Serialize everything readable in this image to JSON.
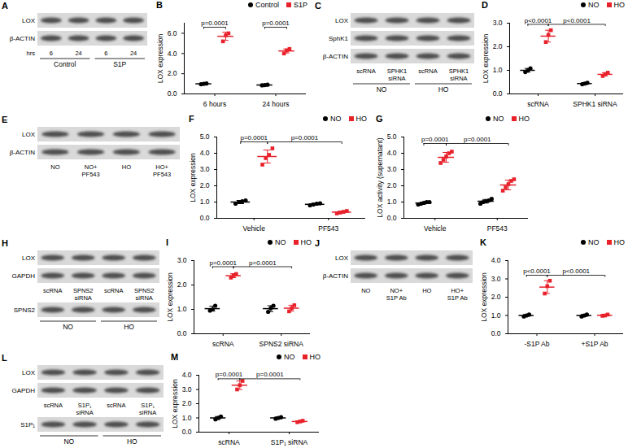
{
  "chart_data": [
    {
      "type": "scatter",
      "title": "B",
      "ylabel": "LOX expression",
      "categories": [
        "6 hours",
        "24 hours"
      ],
      "ylim": [
        0,
        7
      ],
      "yticks": [
        0,
        2,
        4,
        6
      ],
      "legend": "top",
      "series": [
        {
          "name": "Control",
          "color": "#000000",
          "marker": "circle",
          "values": [
            1.0,
            0.88
          ],
          "error": [
            0.04,
            0.04
          ],
          "points": [
            [
              0.96,
              1.0,
              1.03
            ],
            [
              0.85,
              0.88,
              0.91
            ]
          ]
        },
        {
          "name": "S1P",
          "color": "#e8212b",
          "marker": "square",
          "values": [
            5.7,
            4.25
          ],
          "error": [
            0.4,
            0.2
          ],
          "points": [
            [
              5.2,
              5.8,
              6.0
            ],
            [
              4.0,
              4.3,
              4.45
            ]
          ]
        }
      ],
      "comparisons": [
        {
          "label": "p=0.0001",
          "from": [
            0,
            0
          ],
          "to": [
            0,
            1
          ],
          "y": 6.6
        },
        {
          "label": "p=0.0001",
          "from": [
            1,
            0
          ],
          "to": [
            1,
            1
          ],
          "y": 6.6
        }
      ]
    },
    {
      "type": "scatter",
      "title": "D",
      "ylabel": "LOX expression",
      "categories": [
        "scRNA",
        "SPHK1 siRNA"
      ],
      "ylim": [
        0,
        3
      ],
      "yticks": [
        0,
        1,
        2,
        3
      ],
      "legend": "top",
      "series": [
        {
          "name": "NO",
          "color": "#000000",
          "marker": "circle",
          "values": [
            1.0,
            0.44
          ],
          "error": [
            0.08,
            0.03
          ],
          "points": [
            [
              0.93,
              1.0,
              1.08
            ],
            [
              0.41,
              0.44,
              0.47
            ]
          ]
        },
        {
          "name": "HO",
          "color": "#e8212b",
          "marker": "square",
          "values": [
            2.45,
            0.83
          ],
          "error": [
            0.25,
            0.07
          ],
          "points": [
            [
              2.2,
              2.5,
              2.7
            ],
            [
              0.76,
              0.84,
              0.9
            ]
          ]
        }
      ],
      "comparisons": [
        {
          "label": "p<0.0001",
          "from": [
            0,
            0
          ],
          "to": [
            0,
            1
          ],
          "y": 2.95
        },
        {
          "label": "p<0.0001",
          "from": [
            0,
            1
          ],
          "to": [
            1,
            1
          ],
          "y": 2.95
        }
      ]
    },
    {
      "type": "scatter",
      "title": "F",
      "ylabel": "LOX expression",
      "categories": [
        "Vehicle",
        "PF543"
      ],
      "ylim": [
        0,
        5
      ],
      "yticks": [
        0,
        1,
        2,
        3,
        4,
        5
      ],
      "legend": "top",
      "series": [
        {
          "name": "NO",
          "color": "#000000",
          "marker": "circle",
          "values": [
            1.0,
            0.86
          ],
          "error": [
            0.1,
            0.06
          ],
          "points": [
            [
              0.9,
              1.0,
              1.05,
              1.1
            ],
            [
              0.8,
              0.85,
              0.9,
              0.92
            ]
          ]
        },
        {
          "name": "HO",
          "color": "#e8212b",
          "marker": "square",
          "values": [
            3.8,
            0.38
          ],
          "error": [
            0.4,
            0.06
          ],
          "points": [
            [
              3.3,
              3.7,
              3.9,
              4.3
            ],
            [
              0.3,
              0.35,
              0.4,
              0.45
            ]
          ]
        }
      ],
      "comparisons": [
        {
          "label": "p=0.0001",
          "from": [
            0,
            0
          ],
          "to": [
            0,
            1
          ],
          "y": 4.7
        },
        {
          "label": "p=0.0001",
          "from": [
            0,
            1
          ],
          "to": [
            1,
            1
          ],
          "y": 4.7
        }
      ]
    },
    {
      "type": "scatter",
      "title": "G",
      "ylabel": "LOX activity (supernatant)",
      "categories": [
        "Vehicle",
        "PF543"
      ],
      "ylim": [
        0,
        5
      ],
      "yticks": [
        0,
        1,
        2,
        3,
        4,
        5
      ],
      "legend": "top",
      "series": [
        {
          "name": "NO",
          "color": "#000000",
          "marker": "circle",
          "values": [
            0.94,
            1.05
          ],
          "error": [
            0.06,
            0.11
          ],
          "points": [
            [
              0.85,
              0.9,
              0.95,
              1.0,
              1.0
            ],
            [
              0.9,
              1.0,
              1.05,
              1.1,
              1.2
            ]
          ]
        },
        {
          "name": "HO",
          "color": "#e8212b",
          "marker": "square",
          "values": [
            3.75,
            2.05
          ],
          "error": [
            0.3,
            0.3
          ],
          "points": [
            [
              3.4,
              3.6,
              3.8,
              4.0,
              4.1
            ],
            [
              1.7,
              1.9,
              2.1,
              2.3,
              2.4
            ]
          ]
        }
      ],
      "comparisons": [
        {
          "label": "p=0.0001",
          "from": [
            0,
            0
          ],
          "to": [
            0,
            1
          ],
          "y": 4.6
        },
        {
          "label": "p=0.0001",
          "from": [
            0,
            1
          ],
          "to": [
            1,
            1
          ],
          "y": 4.6
        }
      ]
    },
    {
      "type": "scatter",
      "title": "I",
      "ylabel": "LOX expression",
      "categories": [
        "scRNA",
        "SPNS2 siRNA"
      ],
      "ylim": [
        0,
        3
      ],
      "yticks": [
        0,
        1,
        2,
        3
      ],
      "legend": "top",
      "series": [
        {
          "name": "NO",
          "color": "#000000",
          "marker": "circle",
          "values": [
            1.03,
            1.03
          ],
          "error": [
            0.1,
            0.12
          ],
          "points": [
            [
              0.95,
              1.0,
              1.15
            ],
            [
              0.9,
              1.05,
              1.15
            ]
          ]
        },
        {
          "name": "HO",
          "color": "#e8212b",
          "marker": "square",
          "values": [
            2.38,
            1.05
          ],
          "error": [
            0.08,
            0.12
          ],
          "points": [
            [
              2.3,
              2.4,
              2.45
            ],
            [
              0.92,
              1.05,
              1.17
            ]
          ]
        }
      ],
      "comparisons": [
        {
          "label": "p=0.0001",
          "from": [
            0,
            0
          ],
          "to": [
            0,
            1
          ],
          "y": 2.75
        },
        {
          "label": "p=0.0001",
          "from": [
            0,
            1
          ],
          "to": [
            1,
            1
          ],
          "y": 2.75
        }
      ]
    },
    {
      "type": "scatter",
      "title": "K",
      "ylabel": "LOX expression",
      "categories": [
        "-S1P Ab",
        "+S1P Ab"
      ],
      "ylim": [
        0,
        4
      ],
      "yticks": [
        0,
        1,
        2,
        3,
        4
      ],
      "legend": "top",
      "series": [
        {
          "name": "NO",
          "color": "#000000",
          "marker": "circle",
          "values": [
            1.0,
            1.0
          ],
          "error": [
            0.05,
            0.05
          ],
          "points": [
            [
              0.95,
              1.0,
              1.05
            ],
            [
              0.95,
              1.0,
              1.05
            ]
          ]
        },
        {
          "name": "HO",
          "color": "#e8212b",
          "marker": "square",
          "values": [
            2.55,
            1.01
          ],
          "error": [
            0.35,
            0.04
          ],
          "points": [
            [
              2.2,
              2.6,
              2.9
            ],
            [
              0.98,
              1.0,
              1.05
            ]
          ]
        }
      ],
      "comparisons": [
        {
          "label": "p<0.0001",
          "from": [
            0,
            0
          ],
          "to": [
            0,
            1
          ],
          "y": 3.2
        },
        {
          "label": "p<0.0001",
          "from": [
            0,
            1
          ],
          "to": [
            1,
            1
          ],
          "y": 3.2
        }
      ]
    },
    {
      "type": "scatter",
      "title": "M",
      "ylabel": "LOX expression",
      "categories": [
        "scRNA",
        "S1P₁ siRNA"
      ],
      "ylim": [
        0,
        4
      ],
      "yticks": [
        0,
        1,
        2,
        3,
        4
      ],
      "legend": "top",
      "series": [
        {
          "name": "NO",
          "color": "#000000",
          "marker": "circle",
          "values": [
            1.0,
            1.0
          ],
          "error": [
            0.1,
            0.05
          ],
          "points": [
            [
              0.9,
              1.0,
              1.1
            ],
            [
              0.95,
              1.0,
              1.05
            ]
          ]
        },
        {
          "name": "HO",
          "color": "#e8212b",
          "marker": "square",
          "values": [
            3.3,
            0.75
          ],
          "error": [
            0.3,
            0.05
          ],
          "points": [
            [
              3.0,
              3.3,
              3.6
            ],
            [
              0.7,
              0.75,
              0.8
            ]
          ]
        }
      ],
      "comparisons": [
        {
          "label": "p=0.0001",
          "from": [
            0,
            0
          ],
          "to": [
            0,
            1
          ],
          "y": 3.75
        },
        {
          "label": "p=0.0001",
          "from": [
            0,
            1
          ],
          "to": [
            1,
            1
          ],
          "y": 3.75
        }
      ]
    }
  ],
  "blots": [
    {
      "title": "A",
      "rows": [
        "LOX",
        "β-ACTIN"
      ],
      "lane_axis_label": "hrs",
      "lanes": [
        [
          "6"
        ],
        [
          "24"
        ],
        [
          "6"
        ],
        [
          "24"
        ]
      ],
      "lower_rows": [],
      "groups": [
        {
          "label": "Control",
          "lanes": 2
        },
        {
          "label": "S1P",
          "lanes": 2
        }
      ]
    },
    {
      "title": "C",
      "rows": [
        "LOX",
        "SphK1",
        "β-ACTIN"
      ],
      "lanes": [
        [
          "scRNA"
        ],
        [
          "SPHK1",
          "siRNA"
        ],
        [
          "scRNA"
        ],
        [
          "SPHK1",
          "siRNA"
        ]
      ],
      "lower_rows": [],
      "groups": [
        {
          "label": "NO",
          "lanes": 2
        },
        {
          "label": "HO",
          "lanes": 2
        }
      ]
    },
    {
      "title": "E",
      "rows": [
        "LOX",
        "β-ACTIN"
      ],
      "lanes": [
        [
          "NO"
        ],
        [
          "NO+",
          "PF543"
        ],
        [
          "HO"
        ],
        [
          "HO+",
          "PF543"
        ]
      ],
      "lower_rows": [],
      "groups": []
    },
    {
      "title": "H",
      "rows": [
        "LOX",
        "GAPDH"
      ],
      "lanes": [
        [
          "scRNA"
        ],
        [
          "SPNS2",
          "siRNA"
        ],
        [
          "scRNA"
        ],
        [
          "SPNS2",
          "siRNA"
        ]
      ],
      "lower_rows": [
        "SPNS2"
      ],
      "groups": [
        {
          "label": "NO",
          "lanes": 2
        },
        {
          "label": "HO",
          "lanes": 2
        }
      ]
    },
    {
      "title": "J",
      "rows": [
        "LOX",
        "β-ACTIN"
      ],
      "lanes": [
        [
          "NO"
        ],
        [
          "NO+",
          "S1P Ab"
        ],
        [
          "HO"
        ],
        [
          "HO+",
          "S1P Ab"
        ]
      ],
      "lower_rows": [],
      "groups": []
    },
    {
      "title": "L",
      "rows": [
        "LOX",
        "GAPDH"
      ],
      "lanes": [
        [
          "scRNA"
        ],
        [
          "S1P₁",
          "siRNA"
        ],
        [
          "scRNA"
        ],
        [
          "S1P₁",
          "siRNA"
        ]
      ],
      "lower_rows": [
        "S1P₁"
      ],
      "groups": [
        {
          "label": "NO",
          "lanes": 2
        },
        {
          "label": "HO",
          "lanes": 2
        }
      ]
    }
  ]
}
